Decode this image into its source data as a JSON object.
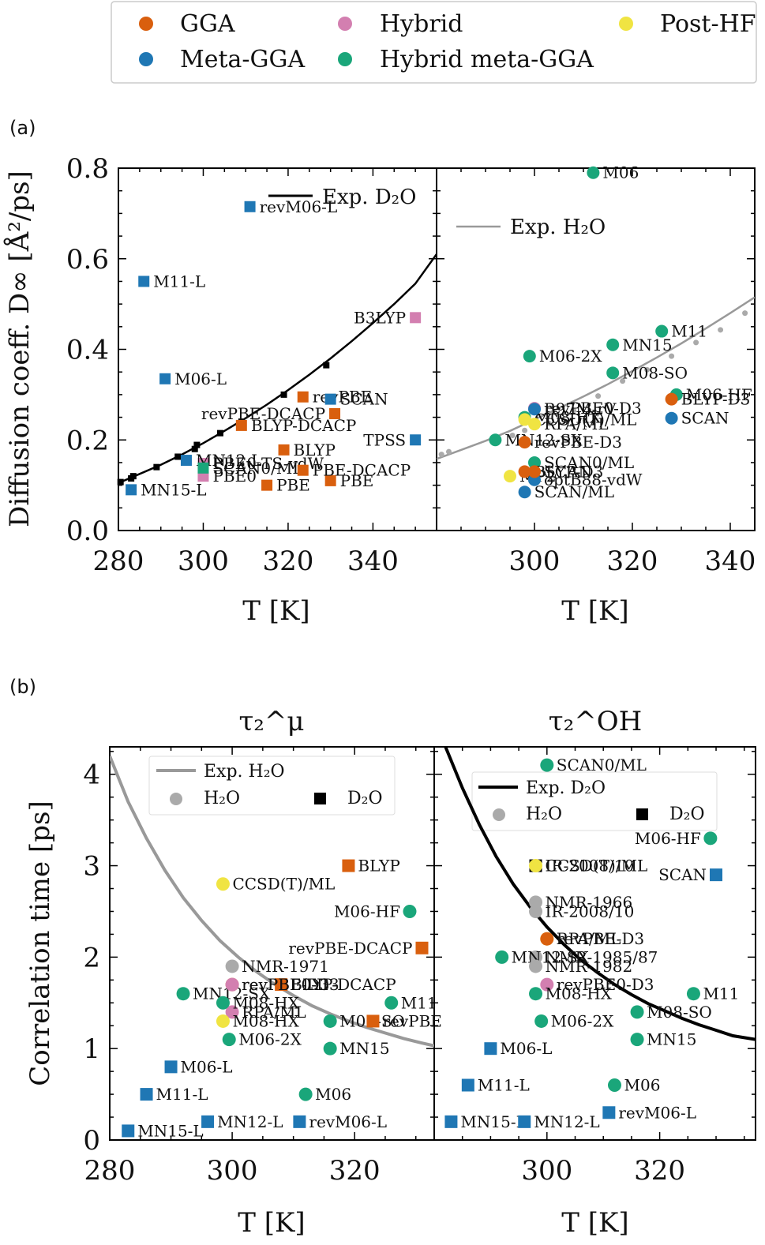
{
  "legend": {
    "entries": [
      {
        "label": "GGA",
        "color": "#D95F0E"
      },
      {
        "label": "Hybrid",
        "color": "#D37FB0"
      },
      {
        "label": "Post-HF",
        "color": "#F0E442"
      },
      {
        "label": "Meta-GGA",
        "color": "#1F77B4"
      },
      {
        "label": "Hybrid meta-GGA",
        "color": "#1AA67A"
      }
    ]
  },
  "colors": {
    "GGA": "#D95F0E",
    "Meta-GGA": "#1F77B4",
    "Hybrid": "#D37FB0",
    "Hybrid meta-GGA": "#1AA67A",
    "Post-HF": "#F0E442",
    "expH2O": "#999999",
    "expD2O": "#000000"
  },
  "panel_labels": {
    "a": "(a)",
    "b": "(b)"
  },
  "chart_data": [
    {
      "id": "a_left",
      "type": "scatter",
      "xlabel": "T [K]",
      "ylabel": "Diffusion coeff. D∞ [Å²/ps]",
      "xlim": [
        280,
        355
      ],
      "ylim": [
        0,
        0.8
      ],
      "xticks": [
        "280",
        "300",
        "320",
        "340"
      ],
      "yticks": [
        "0.0",
        "0.2",
        "0.4",
        "0.6",
        "0.8"
      ],
      "legend": {
        "label": "Exp. D₂O"
      },
      "exp_curve": {
        "name": "Exp. D₂O",
        "x": [
          280,
          285,
          290,
          295,
          300,
          305,
          310,
          315,
          320,
          325,
          330,
          335,
          340,
          345,
          350,
          355
        ],
        "y": [
          0.105,
          0.125,
          0.145,
          0.168,
          0.193,
          0.22,
          0.248,
          0.278,
          0.31,
          0.344,
          0.38,
          0.418,
          0.458,
          0.5,
          0.545,
          0.61
        ]
      },
      "exp_points": {
        "x": [
          280.5,
          283,
          283.5,
          289,
          294,
          298,
          298.5,
          304,
          309,
          319,
          329
        ],
        "y": [
          0.107,
          0.115,
          0.12,
          0.14,
          0.163,
          0.18,
          0.189,
          0.215,
          0.24,
          0.3,
          0.365
        ]
      },
      "points": [
        {
          "label": "revM06-L",
          "x": 311,
          "y": 0.715,
          "class": "Meta-GGA",
          "marker": "square"
        },
        {
          "label": "M11-L",
          "x": 286,
          "y": 0.55,
          "class": "Meta-GGA",
          "marker": "square"
        },
        {
          "label": "B3LYP",
          "x": 350,
          "y": 0.47,
          "class": "Hybrid",
          "marker": "square"
        },
        {
          "label": "BLYP-DCACP",
          "x": 309,
          "y": 0.232,
          "class": "GGA",
          "marker": "square"
        },
        {
          "label": "M06-L",
          "x": 291,
          "y": 0.335,
          "class": "Meta-GGA",
          "marker": "square"
        },
        {
          "label": "revPBE",
          "x": 323.5,
          "y": 0.295,
          "class": "GGA",
          "marker": "square"
        },
        {
          "label": "SCAN",
          "x": 330,
          "y": 0.29,
          "class": "Meta-GGA",
          "marker": "square"
        },
        {
          "label": "PBE0-TS-vdW",
          "x": 300,
          "y": 0.148,
          "class": "Hybrid",
          "marker": "square"
        },
        {
          "label": "revPBE-DCACP",
          "x": 331,
          "y": 0.258,
          "class": "GGA",
          "marker": "square"
        },
        {
          "label": "MN12-L",
          "x": 296,
          "y": 0.155,
          "class": "Meta-GGA",
          "marker": "square"
        },
        {
          "label": "BLYP",
          "x": 319,
          "y": 0.178,
          "class": "GGA",
          "marker": "square"
        },
        {
          "label": "TPSS",
          "x": 350,
          "y": 0.2,
          "class": "Meta-GGA",
          "marker": "square"
        },
        {
          "label": "PBE0",
          "x": 300,
          "y": 0.12,
          "class": "Hybrid",
          "marker": "square"
        },
        {
          "label": "PBE",
          "x": 315,
          "y": 0.1,
          "class": "GGA",
          "marker": "square"
        },
        {
          "label": "PBE",
          "x": 330,
          "y": 0.11,
          "class": "GGA",
          "marker": "square"
        },
        {
          "label": "MN15-L",
          "x": 283,
          "y": 0.09,
          "class": "Meta-GGA",
          "marker": "square"
        },
        {
          "label": "SCAN0/ML",
          "x": 300,
          "y": 0.138,
          "class": "Hybrid meta-GGA",
          "marker": "square"
        },
        {
          "label": "PBE-DCACP",
          "x": 323.5,
          "y": 0.133,
          "class": "GGA",
          "marker": "square"
        }
      ]
    },
    {
      "id": "a_right",
      "type": "scatter",
      "xlabel": "T [K]",
      "xlim": [
        280,
        345
      ],
      "ylim": [
        0,
        0.8
      ],
      "xticks": [
        "300",
        "320",
        "340"
      ],
      "legend": {
        "label": "Exp. H₂O"
      },
      "exp_curve": {
        "name": "Exp. H₂O",
        "x": [
          280,
          285,
          290,
          295,
          300,
          305,
          310,
          315,
          320,
          325,
          330,
          335,
          340,
          345
        ],
        "y": [
          0.158,
          0.178,
          0.198,
          0.22,
          0.245,
          0.27,
          0.296,
          0.323,
          0.352,
          0.382,
          0.413,
          0.446,
          0.48,
          0.515
        ]
      },
      "exp_points": {
        "x": [
          281,
          282.5,
          295.5,
          298,
          303,
          308,
          313,
          318,
          323,
          328,
          333,
          338,
          343
        ],
        "y": [
          0.168,
          0.174,
          0.21,
          0.221,
          0.236,
          0.265,
          0.297,
          0.33,
          0.355,
          0.385,
          0.415,
          0.443,
          0.48
        ]
      },
      "points": [
        {
          "label": "M06",
          "x": 312,
          "y": 0.79,
          "class": "Hybrid meta-GGA",
          "marker": "circle"
        },
        {
          "label": "M11",
          "x": 326,
          "y": 0.44,
          "class": "Hybrid meta-GGA",
          "marker": "circle"
        },
        {
          "label": "MN15",
          "x": 316,
          "y": 0.41,
          "class": "Hybrid meta-GGA",
          "marker": "circle"
        },
        {
          "label": "M06-2X",
          "x": 299,
          "y": 0.385,
          "class": "Hybrid meta-GGA",
          "marker": "circle"
        },
        {
          "label": "M08-SO",
          "x": 316,
          "y": 0.348,
          "class": "Hybrid meta-GGA",
          "marker": "circle"
        },
        {
          "label": "M06-HF",
          "x": 329,
          "y": 0.3,
          "class": "Hybrid meta-GGA",
          "marker": "circle"
        },
        {
          "label": "BLYP-D3",
          "x": 328,
          "y": 0.29,
          "class": "GGA",
          "marker": "circle"
        },
        {
          "label": "SCAN",
          "x": 328,
          "y": 0.248,
          "class": "Meta-GGA",
          "marker": "circle"
        },
        {
          "label": "revPBE0-D3",
          "x": 300,
          "y": 0.27,
          "class": "Hybrid",
          "marker": "circle"
        },
        {
          "label": "M08-HX",
          "x": 298,
          "y": 0.25,
          "class": "Hybrid meta-GGA",
          "marker": "circle"
        },
        {
          "label": "B97M-rV",
          "x": 300,
          "y": 0.268,
          "class": "Meta-GGA",
          "marker": "circle"
        },
        {
          "label": "CCSD(T)/ML",
          "x": 298,
          "y": 0.245,
          "class": "Post-HF",
          "marker": "circle"
        },
        {
          "label": "RPA/ML",
          "x": 300,
          "y": 0.235,
          "class": "Post-HF",
          "marker": "circle"
        },
        {
          "label": "MN12-SX",
          "x": 292,
          "y": 0.2,
          "class": "Hybrid meta-GGA",
          "marker": "circle"
        },
        {
          "label": "revPBE-D3",
          "x": 298,
          "y": 0.195,
          "class": "GGA",
          "marker": "circle"
        },
        {
          "label": "SCAN0/ML",
          "x": 300,
          "y": 0.15,
          "class": "Hybrid meta-GGA",
          "marker": "circle"
        },
        {
          "label": "MP2",
          "x": 295,
          "y": 0.12,
          "class": "Post-HF",
          "marker": "circle"
        },
        {
          "label": "BLYP-D3",
          "x": 298,
          "y": 0.13,
          "class": "GGA",
          "marker": "circle"
        },
        {
          "label": "optB88-vdW",
          "x": 300,
          "y": 0.112,
          "class": "Meta-GGA",
          "marker": "circle"
        },
        {
          "label": "SCAN/ML",
          "x": 298,
          "y": 0.085,
          "class": "Meta-GGA",
          "marker": "circle"
        },
        {
          "label": "SCAN",
          "x": 300,
          "y": 0.13,
          "class": "GGA",
          "marker": "circle"
        }
      ]
    },
    {
      "id": "b_left",
      "type": "scatter",
      "title": "τ₂^μ",
      "xlabel": "T [K]",
      "ylabel": "Correlation time [ps]",
      "xlim": [
        280,
        333
      ],
      "ylim": [
        0,
        4.3
      ],
      "xticks": [
        "280",
        "300",
        "320"
      ],
      "yticks": [
        "0",
        "1",
        "2",
        "3",
        "4"
      ],
      "legend": {
        "curve": "Exp. H₂O",
        "h2o": "H₂O",
        "d2o": "D₂O"
      },
      "exp_curve": {
        "name": "Exp. H₂O",
        "x": [
          280,
          283,
          286,
          289,
          292,
          295,
          298,
          301,
          304,
          307,
          310,
          313,
          316,
          319,
          322,
          325,
          328,
          331,
          333
        ],
        "y": [
          4.2,
          3.7,
          3.3,
          2.95,
          2.65,
          2.4,
          2.18,
          2.0,
          1.84,
          1.7,
          1.58,
          1.47,
          1.38,
          1.3,
          1.23,
          1.17,
          1.11,
          1.06,
          1.03
        ]
      },
      "points": [
        {
          "label": "BLYP",
          "x": 319,
          "y": 3.0,
          "class": "GGA",
          "marker": "square"
        },
        {
          "label": "CCSD(T)/ML",
          "x": 298.5,
          "y": 2.8,
          "class": "Post-HF",
          "marker": "circle"
        },
        {
          "label": "M06-HF",
          "x": 329,
          "y": 2.5,
          "class": "Hybrid meta-GGA",
          "marker": "circle"
        },
        {
          "label": "revPBE-DCACP",
          "x": 331,
          "y": 2.1,
          "class": "GGA",
          "marker": "square"
        },
        {
          "label": "NMR-1971",
          "x": 300,
          "y": 1.9,
          "class": "exp",
          "marker": "circle"
        },
        {
          "label": "BLYP-DCACP",
          "x": 308,
          "y": 1.7,
          "class": "GGA",
          "marker": "square"
        },
        {
          "label": "revPBE-D3",
          "x": 300,
          "y": 1.7,
          "class": "GGA",
          "marker": "circle"
        },
        {
          "label": "MN12-SX",
          "x": 292,
          "y": 1.6,
          "class": "Hybrid meta-GGA",
          "marker": "circle"
        },
        {
          "label": "RPA/ML",
          "x": 300,
          "y": 1.4,
          "class": "Hybrid",
          "marker": "circle"
        },
        {
          "label": "M11",
          "x": 326,
          "y": 1.5,
          "class": "Hybrid meta-GGA",
          "marker": "circle"
        },
        {
          "label": "M08-HX",
          "x": 298.5,
          "y": 1.5,
          "class": "Hybrid meta-GGA",
          "marker": "circle"
        },
        {
          "label": "M08-HX",
          "x": 298.5,
          "y": 1.3,
          "class": "Post-HF",
          "marker": "circle"
        },
        {
          "label": "M08-SO",
          "x": 316,
          "y": 1.3,
          "class": "Hybrid meta-GGA",
          "marker": "circle"
        },
        {
          "label": "revPBE",
          "x": 323,
          "y": 1.3,
          "class": "GGA",
          "marker": "square"
        },
        {
          "label": "M06-2X",
          "x": 299.5,
          "y": 1.1,
          "class": "Hybrid meta-GGA",
          "marker": "circle"
        },
        {
          "label": "MN15",
          "x": 316,
          "y": 1.0,
          "class": "Hybrid meta-GGA",
          "marker": "circle"
        },
        {
          "label": "M06-L",
          "x": 290,
          "y": 0.8,
          "class": "Meta-GGA",
          "marker": "square"
        },
        {
          "label": "M11-L",
          "x": 286,
          "y": 0.5,
          "class": "Meta-GGA",
          "marker": "square"
        },
        {
          "label": "M06",
          "x": 312,
          "y": 0.5,
          "class": "Hybrid meta-GGA",
          "marker": "circle"
        },
        {
          "label": "MN15-L",
          "x": 283,
          "y": 0.1,
          "class": "Meta-GGA",
          "marker": "square"
        },
        {
          "label": "MN12-L",
          "x": 296,
          "y": 0.2,
          "class": "Meta-GGA",
          "marker": "square"
        },
        {
          "label": "revM06-L",
          "x": 311,
          "y": 0.2,
          "class": "Meta-GGA",
          "marker": "square"
        },
        {
          "label": "revPBE0-D3",
          "x": 300,
          "y": 1.7,
          "class": "Hybrid",
          "marker": "circle"
        }
      ]
    },
    {
      "id": "b_right",
      "type": "scatter",
      "title": "τ₂^OH",
      "xlabel": "T [K]",
      "xlim": [
        280,
        337
      ],
      "ylim": [
        0,
        4.3
      ],
      "xticks": [
        "300",
        "320"
      ],
      "legend": {
        "curve": "Exp. D₂O",
        "h2o": "H₂O",
        "d2o": "D₂O"
      },
      "exp_curve": {
        "name": "Exp. D₂O",
        "x": [
          282,
          285,
          288,
          291,
          294,
          297,
          300,
          303,
          306,
          309,
          312,
          315,
          318,
          321,
          324,
          327,
          330,
          333,
          337
        ],
        "y": [
          4.3,
          3.85,
          3.45,
          3.1,
          2.8,
          2.55,
          2.33,
          2.14,
          1.97,
          1.83,
          1.7,
          1.59,
          1.49,
          1.41,
          1.33,
          1.26,
          1.2,
          1.14,
          1.1
        ]
      },
      "points": [
        {
          "label": "SCAN0/ML",
          "x": 300,
          "y": 4.1,
          "class": "Hybrid meta-GGA",
          "marker": "circle"
        },
        {
          "label": "M06-HF",
          "x": 329,
          "y": 3.3,
          "class": "Hybrid meta-GGA",
          "marker": "circle"
        },
        {
          "label": "IR-2008/10",
          "x": 298,
          "y": 3.0,
          "class": "exp-d2o",
          "marker": "square"
        },
        {
          "label": "CCSD(T)/ML",
          "x": 298,
          "y": 3.0,
          "class": "Post-HF",
          "marker": "circle"
        },
        {
          "label": "SCAN",
          "x": 330,
          "y": 2.9,
          "class": "Meta-GGA",
          "marker": "square"
        },
        {
          "label": "NMR-1966",
          "x": 298,
          "y": 2.6,
          "class": "exp",
          "marker": "circle"
        },
        {
          "label": "IR-2008/10",
          "x": 298,
          "y": 2.5,
          "class": "exp",
          "marker": "circle"
        },
        {
          "label": "RPA/ML",
          "x": 300,
          "y": 2.2,
          "class": "Post-HF",
          "marker": "circle"
        },
        {
          "label": "revPBE-D3",
          "x": 300,
          "y": 2.2,
          "class": "GGA",
          "marker": "circle"
        },
        {
          "label": "NMR-1985/87",
          "x": 298,
          "y": 2.0,
          "class": "exp",
          "marker": "circle"
        },
        {
          "label": "MN12-SX",
          "x": 292,
          "y": 2.0,
          "class": "Hybrid meta-GGA",
          "marker": "circle"
        },
        {
          "label": "revPBE0-D3",
          "x": 300,
          "y": 1.7,
          "class": "Hybrid",
          "marker": "circle"
        },
        {
          "label": "NMR-1982",
          "x": 298,
          "y": 1.9,
          "class": "exp",
          "marker": "circle"
        },
        {
          "label": "M08-HX",
          "x": 298,
          "y": 1.6,
          "class": "Hybrid meta-GGA",
          "marker": "circle"
        },
        {
          "label": "M11",
          "x": 326,
          "y": 1.6,
          "class": "Hybrid meta-GGA",
          "marker": "circle"
        },
        {
          "label": "M08-SO",
          "x": 316,
          "y": 1.4,
          "class": "Hybrid meta-GGA",
          "marker": "circle"
        },
        {
          "label": "M06-2X",
          "x": 299,
          "y": 1.3,
          "class": "Hybrid meta-GGA",
          "marker": "circle"
        },
        {
          "label": "MN15",
          "x": 316,
          "y": 1.1,
          "class": "Hybrid meta-GGA",
          "marker": "circle"
        },
        {
          "label": "M06-L",
          "x": 290,
          "y": 1.0,
          "class": "Meta-GGA",
          "marker": "square"
        },
        {
          "label": "M11-L",
          "x": 286,
          "y": 0.6,
          "class": "Meta-GGA",
          "marker": "square"
        },
        {
          "label": "M06",
          "x": 312,
          "y": 0.6,
          "class": "Hybrid meta-GGA",
          "marker": "circle"
        },
        {
          "label": "MN15-L",
          "x": 283,
          "y": 0.2,
          "class": "Meta-GGA",
          "marker": "square"
        },
        {
          "label": "MN12-L",
          "x": 296,
          "y": 0.2,
          "class": "Meta-GGA",
          "marker": "square"
        },
        {
          "label": "revM06-L",
          "x": 311,
          "y": 0.3,
          "class": "Meta-GGA",
          "marker": "square"
        }
      ]
    }
  ]
}
